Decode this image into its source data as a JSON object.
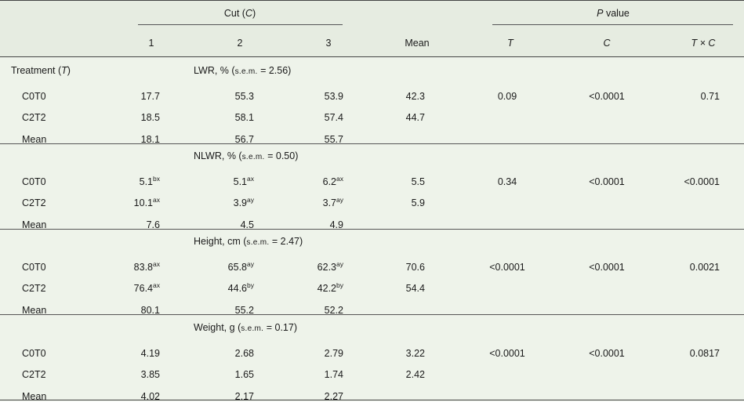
{
  "header": {
    "cut_label": "Cut",
    "cut_symbol": "C",
    "pvalue_symbol": "P",
    "pvalue_label": "value",
    "cut_cols": [
      "1",
      "2",
      "3"
    ],
    "mean_col": "Mean",
    "p_cols": [
      "T",
      "C",
      "T × C"
    ]
  },
  "treatment_label": "Treatment",
  "treatment_symbol": "T",
  "sections": [
    {
      "title": "LWR, %",
      "sem_label": "s.e.m.",
      "sem_value": "= 2.56",
      "rows": [
        {
          "label": "C0T0",
          "c1": "17.7",
          "c1s": "",
          "c2": "55.3",
          "c2s": "",
          "c3": "53.9",
          "c3s": "",
          "mean": "42.3",
          "pT": "0.09",
          "pC": "<0.0001",
          "pTC": "0.71"
        },
        {
          "label": "C2T2",
          "c1": "18.5",
          "c1s": "",
          "c2": "58.1",
          "c2s": "",
          "c3": "57.4",
          "c3s": "",
          "mean": "44.7",
          "pT": "",
          "pC": "",
          "pTC": ""
        },
        {
          "label": "Mean",
          "c1": "18.1",
          "c1s": "",
          "c2": "56.7",
          "c2s": "",
          "c3": "55.7",
          "c3s": "",
          "mean": "",
          "pT": "",
          "pC": "",
          "pTC": ""
        }
      ]
    },
    {
      "title": "NLWR, %",
      "sem_label": "s.e.m.",
      "sem_value": "= 0.50",
      "rows": [
        {
          "label": "C0T0",
          "c1": "5.1",
          "c1s": "bx",
          "c2": "5.1",
          "c2s": "ax",
          "c3": "6.2",
          "c3s": "ax",
          "mean": "5.5",
          "pT": "0.34",
          "pC": "<0.0001",
          "pTC": "<0.0001"
        },
        {
          "label": "C2T2",
          "c1": "10.1",
          "c1s": "ax",
          "c2": "3.9",
          "c2s": "ay",
          "c3": "3.7",
          "c3s": "ay",
          "mean": "5.9",
          "pT": "",
          "pC": "",
          "pTC": ""
        },
        {
          "label": "Mean",
          "c1": "7.6",
          "c1s": "",
          "c2": "4.5",
          "c2s": "",
          "c3": "4.9",
          "c3s": "",
          "mean": "",
          "pT": "",
          "pC": "",
          "pTC": ""
        }
      ]
    },
    {
      "title": "Height, cm",
      "sem_label": "s.e.m.",
      "sem_value": "= 2.47",
      "rows": [
        {
          "label": "C0T0",
          "c1": "83.8",
          "c1s": "ax",
          "c2": "65.8",
          "c2s": "ay",
          "c3": "62.3",
          "c3s": "ay",
          "mean": "70.6",
          "pT": "<0.0001",
          "pC": "<0.0001",
          "pTC": "0.0021"
        },
        {
          "label": "C2T2",
          "c1": "76.4",
          "c1s": "ax",
          "c2": "44.6",
          "c2s": "by",
          "c3": "42.2",
          "c3s": "by",
          "mean": "54.4",
          "pT": "",
          "pC": "",
          "pTC": ""
        },
        {
          "label": "Mean",
          "c1": "80.1",
          "c1s": "",
          "c2": "55.2",
          "c2s": "",
          "c3": "52.2",
          "c3s": "",
          "mean": "",
          "pT": "",
          "pC": "",
          "pTC": ""
        }
      ]
    },
    {
      "title": "Weight, g",
      "sem_label": "s.e.m.",
      "sem_value": "= 0.17",
      "rows": [
        {
          "label": "C0T0",
          "c1": "4.19",
          "c1s": "",
          "c2": "2.68",
          "c2s": "",
          "c3": "2.79",
          "c3s": "",
          "mean": "3.22",
          "pT": "<0.0001",
          "pC": "<0.0001",
          "pTC": "0.0817"
        },
        {
          "label": "C2T2",
          "c1": "3.85",
          "c1s": "",
          "c2": "1.65",
          "c2s": "",
          "c3": "1.74",
          "c3s": "",
          "mean": "2.42",
          "pT": "",
          "pC": "",
          "pTC": ""
        },
        {
          "label": "Mean",
          "c1": "4.02",
          "c1s": "",
          "c2": "2.17",
          "c2s": "",
          "c3": "2.27",
          "c3s": "",
          "mean": "",
          "pT": "",
          "pC": "",
          "pTC": ""
        }
      ]
    }
  ]
}
